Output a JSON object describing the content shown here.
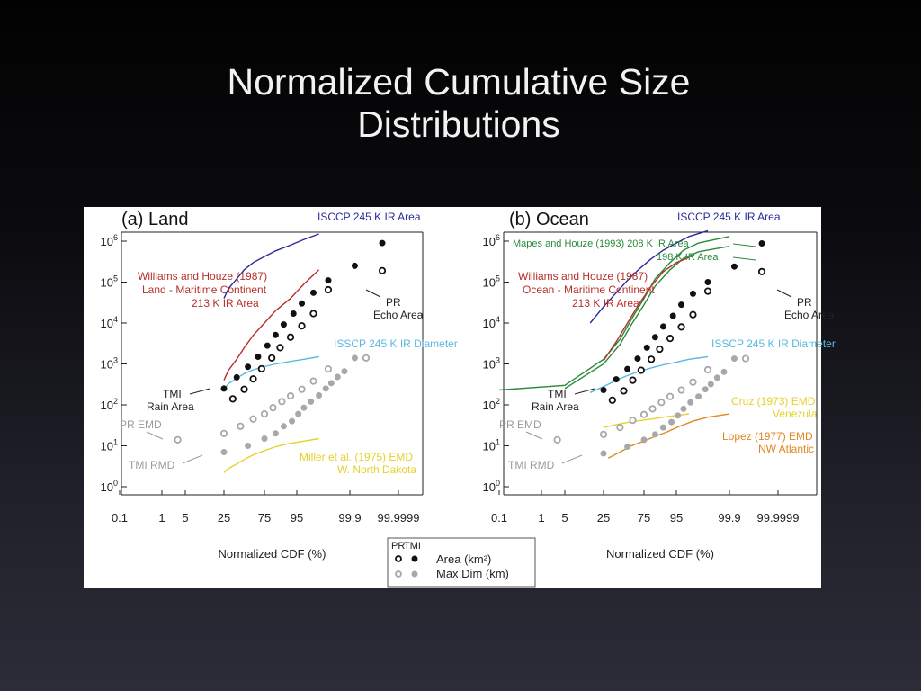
{
  "slide": {
    "title_line1": "Normalized Cumulative Size",
    "title_line2": "Distributions"
  },
  "colors": {
    "isccp_area": "#2a2a9a",
    "isccp_diameter": "#5ab8e0",
    "williams": "#b5302a",
    "mapes": "#2a8a3a",
    "rmd": "#e8d02a",
    "lopez": "#e08820",
    "markers": "#111111",
    "maxdim": "#a8a8a8"
  },
  "chart_data": [
    {
      "type": "scatter",
      "panel_label": "(a) Land",
      "xlabel": "Normalized CDF (%)",
      "x_tick_labels": [
        "0.1",
        "1",
        "5",
        "25",
        "75",
        "95",
        "99.9",
        "99.9999"
      ],
      "y_tick_labels": [
        "10^0",
        "10^1",
        "10^2",
        "10^3",
        "10^4",
        "10^5",
        "10^6"
      ],
      "ylim": [
        1,
        2000000
      ],
      "yscale": "log",
      "annotations": {
        "isccp_area": "ISCCP 245 K IR Area",
        "williams": [
          "Williams and Houze (1987)",
          "Land - Maritime Continent",
          "213 K IR Area"
        ],
        "pr": [
          "PR",
          "Echo Area"
        ],
        "isscp_diameter": "ISSCP 245 K IR Diameter",
        "tmi": [
          "TMI",
          "Rain Area"
        ],
        "pr_emd": "PR EMD",
        "tmi_rmd": "TMI RMD",
        "miller": [
          "Miller et al. (1975) EMD",
          "W. North Dakota"
        ]
      },
      "series": [
        {
          "name": "ISCCP 245 K IR Area",
          "style": "line",
          "x": [
            25,
            30,
            40,
            50,
            62,
            75,
            85,
            93,
            97,
            99
          ],
          "y": [
            40000,
            70000,
            120000,
            200000,
            300000,
            420000,
            580000,
            800000,
            1100000,
            1500000
          ]
        },
        {
          "name": "Williams and Houze (1987) Land - Maritime Continent 213 K IR Area",
          "style": "line",
          "x": [
            25,
            30,
            40,
            50,
            62,
            75,
            85,
            93,
            97,
            99
          ],
          "y": [
            400,
            700,
            1300,
            2500,
            5000,
            10000,
            20000,
            40000,
            90000,
            200000
          ]
        },
        {
          "name": "ISSCP 245 K IR Diameter",
          "style": "line",
          "x": [
            25,
            30,
            40,
            50,
            62,
            75,
            85,
            93,
            97,
            99
          ],
          "y": [
            240,
            330,
            450,
            580,
            720,
            860,
            1000,
            1150,
            1300,
            1500
          ]
        },
        {
          "name": "Miller et al. (1975) EMD",
          "style": "line",
          "x": [
            25,
            30,
            40,
            50,
            62,
            75,
            85,
            93,
            97,
            99
          ],
          "y": [
            2.2,
            2.8,
            3.6,
            4.6,
            6,
            7.6,
            9.5,
            11.5,
            13,
            15
          ]
        },
        {
          "name": "TMI Rain Area",
          "style": "filled",
          "x": [
            25,
            40,
            55,
            68,
            78,
            85,
            90,
            94,
            96.5,
            98.5,
            99.5,
            99.95,
            99.999
          ],
          "y": [
            250,
            470,
            850,
            1500,
            2800,
            5100,
            9200,
            17000,
            30000,
            55000,
            110000,
            250000,
            900000
          ]
        },
        {
          "name": "PR Echo Area",
          "style": "open",
          "x": [
            35,
            50,
            62,
            72,
            82,
            88,
            93,
            96.5,
            98.5,
            99.5,
            99.999
          ],
          "y": [
            140,
            240,
            430,
            760,
            1400,
            2500,
            4500,
            8500,
            17000,
            65000,
            190000
          ]
        },
        {
          "name": "TMI RMD",
          "style": "filled-gray",
          "x": [
            25,
            55,
            75,
            85,
            90,
            93.5,
            95.5,
            97,
            98.2,
            99,
            99.4,
            99.6,
            99.75,
            99.85,
            99.95
          ],
          "y": [
            7,
            10,
            15,
            20,
            30,
            40,
            60,
            85,
            120,
            170,
            250,
            340,
            480,
            660,
            1400
          ]
        },
        {
          "name": "PR EMD",
          "style": "open-gray",
          "x": [
            3,
            25,
            45,
            62,
            75,
            83,
            89,
            93,
            96.5,
            98.5,
            99.5,
            99.99
          ],
          "y": [
            14,
            20,
            30,
            45,
            60,
            85,
            120,
            165,
            240,
            380,
            750,
            1400
          ]
        }
      ]
    },
    {
      "type": "scatter",
      "panel_label": "(b) Ocean",
      "xlabel": "Normalized CDF (%)",
      "x_tick_labels": [
        "0.1",
        "1",
        "5",
        "25",
        "75",
        "95",
        "99.9",
        "99.9999"
      ],
      "y_tick_labels": [
        "10^0",
        "10^1",
        "10^2",
        "10^3",
        "10^4",
        "10^5",
        "10^6"
      ],
      "ylim": [
        1,
        2000000
      ],
      "yscale": "log",
      "annotations": {
        "isccp_area": "ISCCP 245 K IR Area",
        "mapes": [
          "Mapes and Houze (1993) 208 K IR Area",
          "198 K IR Area"
        ],
        "williams": [
          "Williams and Houze (1987)",
          "Ocean - Maritime Continent",
          "213 K IR Area"
        ],
        "pr": [
          "PR",
          "Echo Area"
        ],
        "isscp_diameter": "ISSCP 245 K IR Diameter",
        "tmi": [
          "TMI",
          "Rain Area"
        ],
        "pr_emd": "PR EMD",
        "tmi_rmd": "TMI RMD",
        "cruz": [
          "Cruz (1973) EMD",
          "Venezula"
        ],
        "lopez": [
          "Lopez (1977) EMD",
          "NW Atlantic"
        ]
      },
      "series": [
        {
          "name": "ISCCP 245 K IR Area",
          "style": "line",
          "x": [
            15,
            25,
            40,
            55,
            70,
            82,
            90,
            95,
            98,
            99.5
          ],
          "y": [
            10000,
            25000,
            55000,
            110000,
            210000,
            370000,
            600000,
            900000,
            1300000,
            1800000
          ]
        },
        {
          "name": "Mapes and Houze (1993) 208 K IR Area",
          "style": "line",
          "x": [
            0.1,
            5,
            25,
            45,
            60,
            75,
            85,
            93,
            97,
            99,
            99.9
          ],
          "y": [
            230,
            300,
            1300,
            4000,
            12000,
            40000,
            120000,
            300000,
            600000,
            900000,
            1300000
          ]
        },
        {
          "name": "198 K IR Area",
          "style": "line",
          "x": [
            5,
            25,
            45,
            60,
            75,
            85,
            93,
            97,
            99,
            99.9
          ],
          "y": [
            250,
            1000,
            3000,
            9000,
            28000,
            80000,
            200000,
            380000,
            550000,
            750000
          ]
        },
        {
          "name": "Williams and Houze (1987) Ocean - Maritime Continent 213 K IR Area",
          "style": "line",
          "x": [
            25,
            40,
            55,
            70,
            82,
            90,
            95,
            98
          ],
          "y": [
            1200,
            3500,
            10000,
            30000,
            80000,
            180000,
            300000,
            400000
          ]
        },
        {
          "name": "ISSCP 245 K IR Diameter",
          "style": "line",
          "x": [
            15,
            25,
            40,
            55,
            70,
            82,
            90,
            95,
            98,
            99.5
          ],
          "y": [
            200,
            280,
            400,
            520,
            660,
            800,
            950,
            1100,
            1300,
            1500
          ]
        },
        {
          "name": "Cruz (1973) EMD",
          "style": "line",
          "x": [
            25,
            40,
            55,
            70,
            82,
            90,
            95,
            98
          ],
          "y": [
            28,
            33,
            37,
            41,
            45,
            50,
            55,
            60
          ]
        },
        {
          "name": "Lopez (1977) EMD",
          "style": "line",
          "x": [
            30,
            45,
            60,
            75,
            85,
            92,
            96,
            98.5,
            99.5,
            99.9
          ],
          "y": [
            5,
            7,
            10,
            13,
            17,
            22,
            30,
            40,
            50,
            60
          ]
        },
        {
          "name": "TMI Rain Area",
          "style": "filled",
          "x": [
            25,
            40,
            55,
            68,
            78,
            85,
            90,
            94,
            96.5,
            98.5,
            99.5,
            99.95,
            99.999
          ],
          "y": [
            230,
            420,
            750,
            1350,
            2500,
            4500,
            8200,
            15000,
            28000,
            52000,
            100000,
            240000,
            880000
          ]
        },
        {
          "name": "PR Echo Area",
          "style": "open",
          "x": [
            35,
            50,
            62,
            72,
            82,
            88,
            93,
            96.5,
            98.5,
            99.5,
            99.999
          ],
          "y": [
            130,
            220,
            400,
            700,
            1300,
            2300,
            4200,
            8000,
            16000,
            60000,
            180000
          ]
        },
        {
          "name": "TMI RMD",
          "style": "filled-gray",
          "x": [
            25,
            55,
            75,
            85,
            90,
            93.5,
            95.5,
            97,
            98.2,
            99,
            99.4,
            99.6,
            99.75,
            99.85,
            99.95
          ],
          "y": [
            6.5,
            9.5,
            14,
            19,
            28,
            38,
            55,
            80,
            115,
            160,
            240,
            320,
            460,
            640,
            1350
          ]
        },
        {
          "name": "PR EMD",
          "style": "open-gray",
          "x": [
            3,
            25,
            45,
            62,
            75,
            83,
            89,
            93,
            96.5,
            98.5,
            99.5,
            99.99
          ],
          "y": [
            14,
            19,
            28,
            42,
            58,
            80,
            115,
            160,
            230,
            360,
            720,
            1350
          ]
        }
      ]
    }
  ],
  "legend": {
    "header_pr": "PR",
    "header_tmi": "TMI",
    "area": "Area (km²)",
    "maxdim": "Max Dim (km)"
  }
}
